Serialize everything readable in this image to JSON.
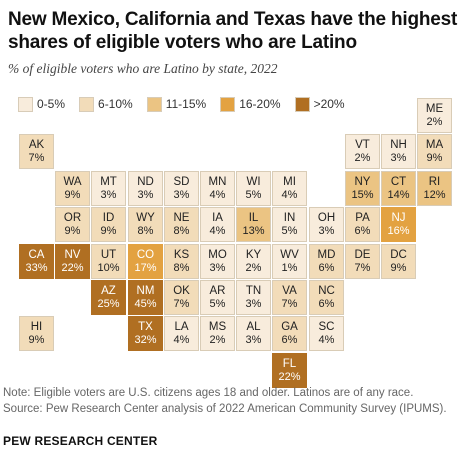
{
  "title": "New Mexico, California and Texas have the highest shares of eligible voters who are Latino",
  "subtitle": "% of eligible voters who are Latino by state, 2022",
  "note_line1": "Note: Eligible voters are U.S. citizens ages 18 and older. Latinos are of any race.",
  "note_line2": "Source: Pew Research Center analysis of 2022 American Community Survey (IPUMS).",
  "brand": "PEW RESEARCH CENTER",
  "legend": [
    {
      "label": "0-5%",
      "color": "#f8ecdc"
    },
    {
      "label": "6-10%",
      "color": "#f2dcb9"
    },
    {
      "label": "11-15%",
      "color": "#ebc483"
    },
    {
      "label": "16-20%",
      "color": "#e3a241"
    },
    {
      "label": ">20%",
      "color": "#b06f22"
    }
  ],
  "chart_data": {
    "type": "tile-map",
    "unit": "%",
    "states": [
      {
        "abbr": "ME",
        "value": 2,
        "row": 0,
        "col": 11
      },
      {
        "abbr": "AK",
        "value": 7,
        "row": 1,
        "col": 0
      },
      {
        "abbr": "VT",
        "value": 2,
        "row": 1,
        "col": 9
      },
      {
        "abbr": "NH",
        "value": 3,
        "row": 1,
        "col": 10
      },
      {
        "abbr": "MA",
        "value": 9,
        "row": 1,
        "col": 11
      },
      {
        "abbr": "WA",
        "value": 9,
        "row": 2,
        "col": 1
      },
      {
        "abbr": "MT",
        "value": 3,
        "row": 2,
        "col": 2
      },
      {
        "abbr": "ND",
        "value": 3,
        "row": 2,
        "col": 3
      },
      {
        "abbr": "SD",
        "value": 3,
        "row": 2,
        "col": 4
      },
      {
        "abbr": "MN",
        "value": 4,
        "row": 2,
        "col": 5
      },
      {
        "abbr": "WI",
        "value": 5,
        "row": 2,
        "col": 6
      },
      {
        "abbr": "MI",
        "value": 4,
        "row": 2,
        "col": 7
      },
      {
        "abbr": "NY",
        "value": 15,
        "row": 2,
        "col": 9
      },
      {
        "abbr": "CT",
        "value": 14,
        "row": 2,
        "col": 10
      },
      {
        "abbr": "RI",
        "value": 12,
        "row": 2,
        "col": 11
      },
      {
        "abbr": "OR",
        "value": 9,
        "row": 3,
        "col": 1
      },
      {
        "abbr": "ID",
        "value": 9,
        "row": 3,
        "col": 2
      },
      {
        "abbr": "WY",
        "value": 8,
        "row": 3,
        "col": 3
      },
      {
        "abbr": "NE",
        "value": 8,
        "row": 3,
        "col": 4
      },
      {
        "abbr": "IA",
        "value": 4,
        "row": 3,
        "col": 5
      },
      {
        "abbr": "IL",
        "value": 13,
        "row": 3,
        "col": 6
      },
      {
        "abbr": "IN",
        "value": 5,
        "row": 3,
        "col": 7
      },
      {
        "abbr": "OH",
        "value": 3,
        "row": 3,
        "col": 8
      },
      {
        "abbr": "PA",
        "value": 6,
        "row": 3,
        "col": 9
      },
      {
        "abbr": "NJ",
        "value": 16,
        "row": 3,
        "col": 10
      },
      {
        "abbr": "CA",
        "value": 33,
        "row": 4,
        "col": 0
      },
      {
        "abbr": "NV",
        "value": 22,
        "row": 4,
        "col": 1
      },
      {
        "abbr": "UT",
        "value": 10,
        "row": 4,
        "col": 2
      },
      {
        "abbr": "CO",
        "value": 17,
        "row": 4,
        "col": 3
      },
      {
        "abbr": "KS",
        "value": 8,
        "row": 4,
        "col": 4
      },
      {
        "abbr": "MO",
        "value": 3,
        "row": 4,
        "col": 5
      },
      {
        "abbr": "KY",
        "value": 2,
        "row": 4,
        "col": 6
      },
      {
        "abbr": "WV",
        "value": 1,
        "row": 4,
        "col": 7
      },
      {
        "abbr": "MD",
        "value": 6,
        "row": 4,
        "col": 8
      },
      {
        "abbr": "DE",
        "value": 7,
        "row": 4,
        "col": 9
      },
      {
        "abbr": "DC",
        "value": 9,
        "row": 4,
        "col": 10
      },
      {
        "abbr": "AZ",
        "value": 25,
        "row": 5,
        "col": 2
      },
      {
        "abbr": "NM",
        "value": 45,
        "row": 5,
        "col": 3
      },
      {
        "abbr": "OK",
        "value": 7,
        "row": 5,
        "col": 4
      },
      {
        "abbr": "AR",
        "value": 5,
        "row": 5,
        "col": 5
      },
      {
        "abbr": "TN",
        "value": 3,
        "row": 5,
        "col": 6
      },
      {
        "abbr": "VA",
        "value": 7,
        "row": 5,
        "col": 7
      },
      {
        "abbr": "NC",
        "value": 6,
        "row": 5,
        "col": 8
      },
      {
        "abbr": "HI",
        "value": 9,
        "row": 6,
        "col": 0
      },
      {
        "abbr": "TX",
        "value": 32,
        "row": 6,
        "col": 3
      },
      {
        "abbr": "LA",
        "value": 4,
        "row": 6,
        "col": 4
      },
      {
        "abbr": "MS",
        "value": 2,
        "row": 6,
        "col": 5
      },
      {
        "abbr": "AL",
        "value": 3,
        "row": 6,
        "col": 6
      },
      {
        "abbr": "GA",
        "value": 6,
        "row": 6,
        "col": 7
      },
      {
        "abbr": "SC",
        "value": 4,
        "row": 6,
        "col": 8
      },
      {
        "abbr": "FL",
        "value": 22,
        "row": 7,
        "col": 7
      }
    ]
  }
}
